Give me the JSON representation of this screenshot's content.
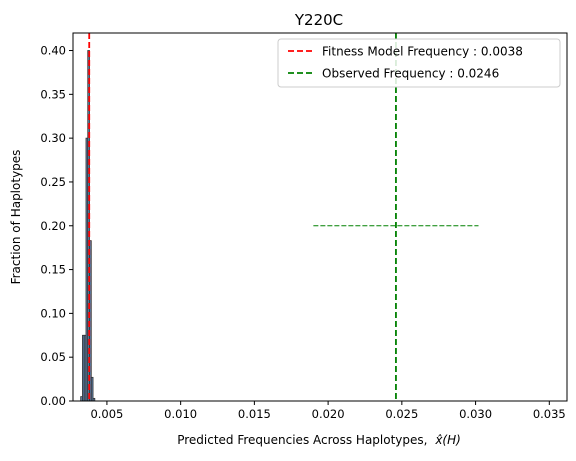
{
  "chart_data": {
    "type": "bar",
    "title": "Y220C",
    "xlabel": "Predicted Frequencies Across Haplotypes,",
    "xlabel_math": "x̂(H)",
    "ylabel": "Fraction of Haplotypes",
    "xlim": [
      0.0027,
      0.0362
    ],
    "ylim": [
      0.0,
      0.42
    ],
    "x_ticks": [
      0.005,
      0.01,
      0.015,
      0.02,
      0.025,
      0.03,
      0.035
    ],
    "x_tick_labels": [
      "0.005",
      "0.010",
      "0.015",
      "0.020",
      "0.025",
      "0.030",
      "0.035"
    ],
    "y_ticks": [
      0.0,
      0.05,
      0.1,
      0.15,
      0.2,
      0.25,
      0.3,
      0.35,
      0.4
    ],
    "y_tick_labels": [
      "0.00",
      "0.05",
      "0.10",
      "0.15",
      "0.20",
      "0.25",
      "0.30",
      "0.35",
      "0.40"
    ],
    "histogram": {
      "bin_width": 0.00012,
      "bin_starts": [
        0.00322,
        0.00334,
        0.00346,
        0.00358,
        0.0037,
        0.00382,
        0.00394,
        0.00406
      ],
      "values": [
        0.005,
        0.075,
        0.075,
        0.3,
        0.4,
        0.183,
        0.027,
        0.003
      ],
      "fill_color": "#5b7fa6",
      "edge_color": "#333333"
    },
    "series": [
      {
        "name": "Fitness Model Frequency : 0.0038",
        "type": "vline",
        "x": 0.0038,
        "color": "#ff0000",
        "style": "dashed"
      },
      {
        "name": "Observed Frequency : 0.0246",
        "type": "vline",
        "x": 0.0246,
        "color": "#008000",
        "style": "dashed"
      }
    ],
    "errorbar": {
      "x": 0.0246,
      "y": 0.2,
      "xmin": 0.019,
      "xmax": 0.0302,
      "color": "#008000",
      "style": "dashed"
    },
    "legend_position": "top-right",
    "grid": false
  }
}
